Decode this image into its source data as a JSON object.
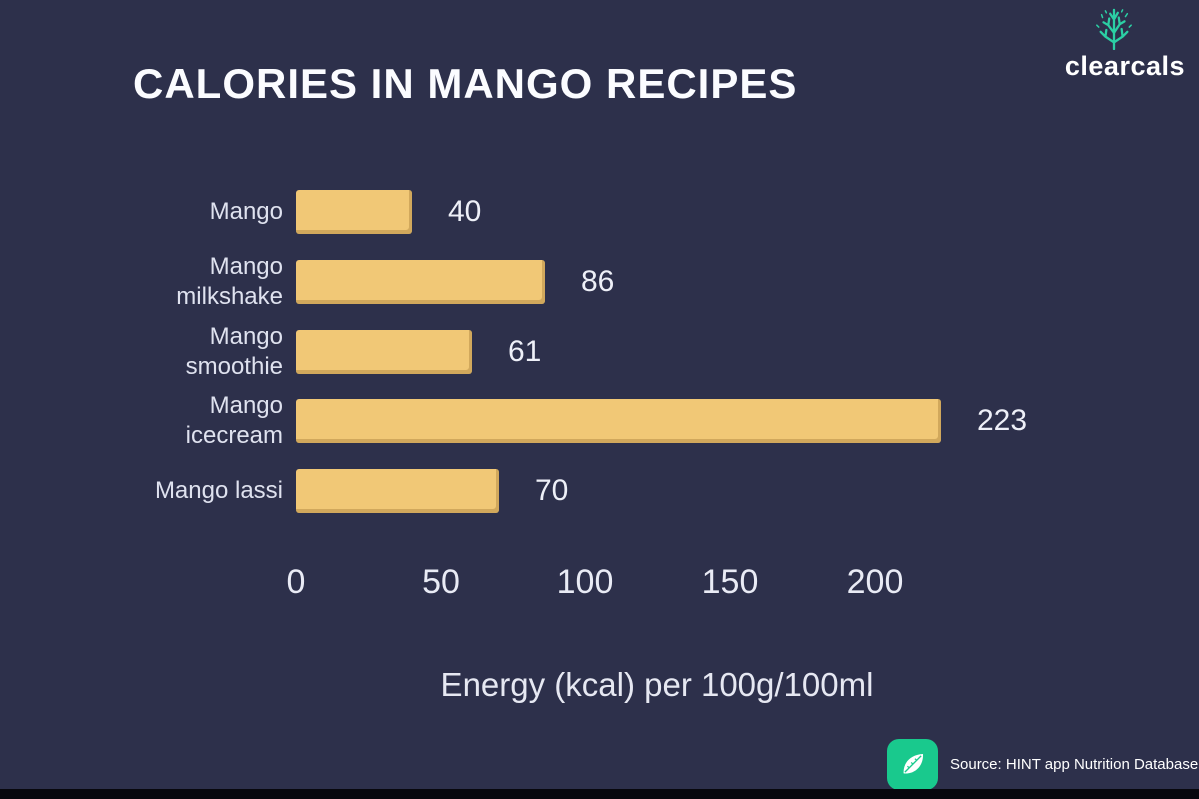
{
  "brand": {
    "name": "clearcals",
    "accent_teal": "#2bcfa4"
  },
  "chart_data": {
    "type": "bar",
    "orientation": "horizontal",
    "title": "CALORIES IN MANGO RECIPES",
    "categories": [
      "Mango",
      "Mango\nmilkshake",
      "Mango\nsmoothie",
      "Mango\nicecream",
      "Mango lassi"
    ],
    "values": [
      40,
      86,
      61,
      223,
      70
    ],
    "xlabel": "Energy (kcal) per 100g/100ml",
    "xticks": [
      0,
      50,
      100,
      150,
      200
    ],
    "xlim": [
      0,
      240
    ],
    "bar_color": "#f1c876",
    "grid": false,
    "legend": false,
    "value_labels": true
  },
  "source": {
    "text": "Source: HINT app Nutrition Database",
    "badge_color": "#19c98d"
  },
  "icons": {
    "brand": "tree-icon",
    "source_badge": "leaf-icon"
  },
  "colors": {
    "background": "#2d304b",
    "text": "#eef0f8",
    "muted_text": "#dfe2ef"
  }
}
